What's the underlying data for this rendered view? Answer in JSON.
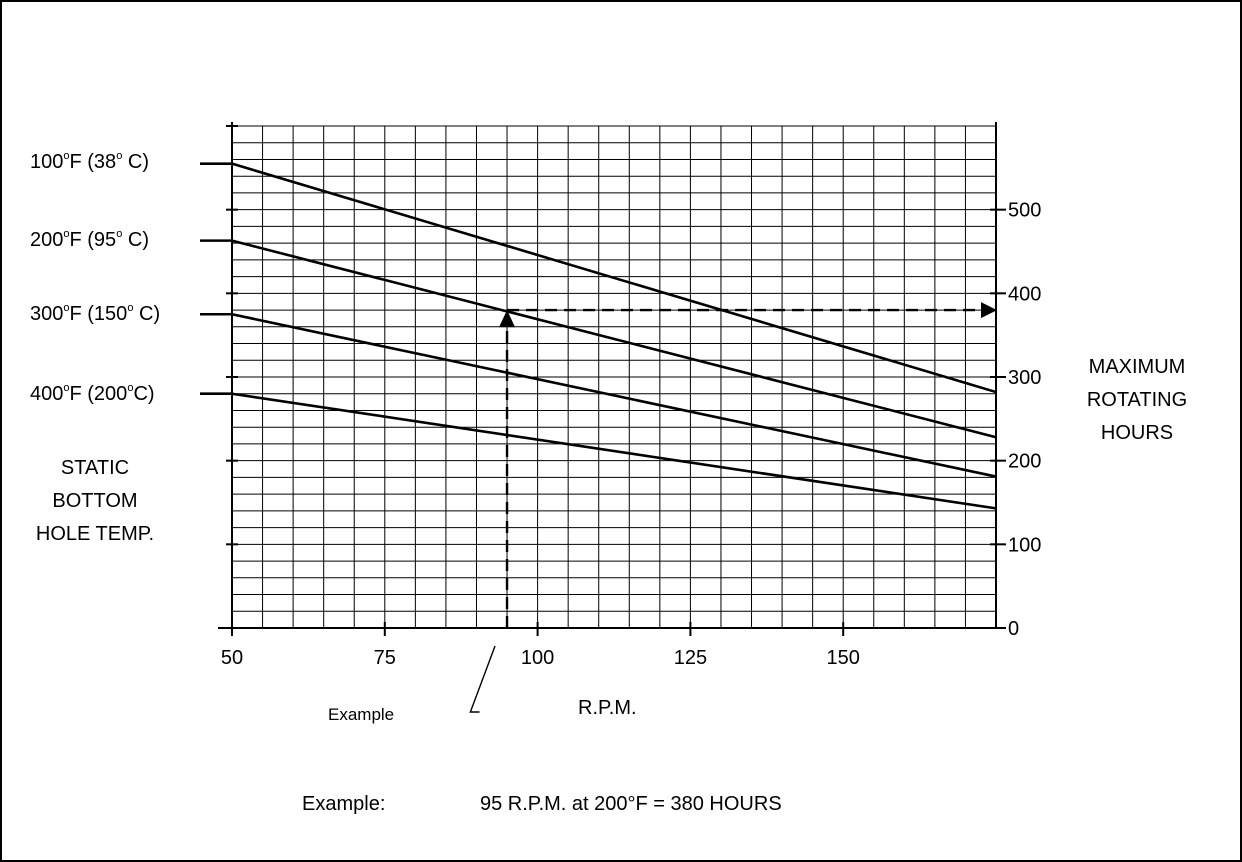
{
  "chart_data": {
    "type": "line",
    "xlabel": "R.P.M.",
    "x_ticks": [
      "50",
      "75",
      "100",
      "125",
      "150"
    ],
    "xlim": [
      50,
      175
    ],
    "ylim": [
      0,
      600
    ],
    "y_ticks": [
      "0",
      "100",
      "200",
      "300",
      "400",
      "500"
    ],
    "ylabel_lines": [
      "MAXIMUM",
      "ROTATING",
      "HOURS"
    ],
    "left_label_lines": [
      "STATIC",
      "BOTTOM",
      "HOLE TEMP."
    ],
    "grid": true,
    "series": [
      {
        "name": "100°F (38° C)",
        "label_main": "100",
        "label_unit": "F (38",
        "label_end": " C)",
        "x": [
          50,
          175
        ],
        "y": [
          555,
          282
        ]
      },
      {
        "name": "200°F (95° C)",
        "label_main": "200",
        "label_unit": "F (95",
        "label_end": " C)",
        "x": [
          50,
          175
        ],
        "y": [
          463,
          228
        ]
      },
      {
        "name": "300°F (150° C)",
        "label_main": "300",
        "label_unit": "F (150",
        "label_end": " C)",
        "x": [
          50,
          175
        ],
        "y": [
          375,
          181
        ]
      },
      {
        "name": "400°F (200°C)",
        "label_main": "400",
        "label_unit": "F (200",
        "label_end": "C)",
        "x": [
          50,
          175
        ],
        "y": [
          280,
          143
        ]
      }
    ],
    "example_point": {
      "x": 95,
      "y": 380
    },
    "example_pointer_label": "Example",
    "footnote_label": "Example:",
    "footnote_text": "95 R.P.M. at 200°F = 380 HOURS"
  }
}
